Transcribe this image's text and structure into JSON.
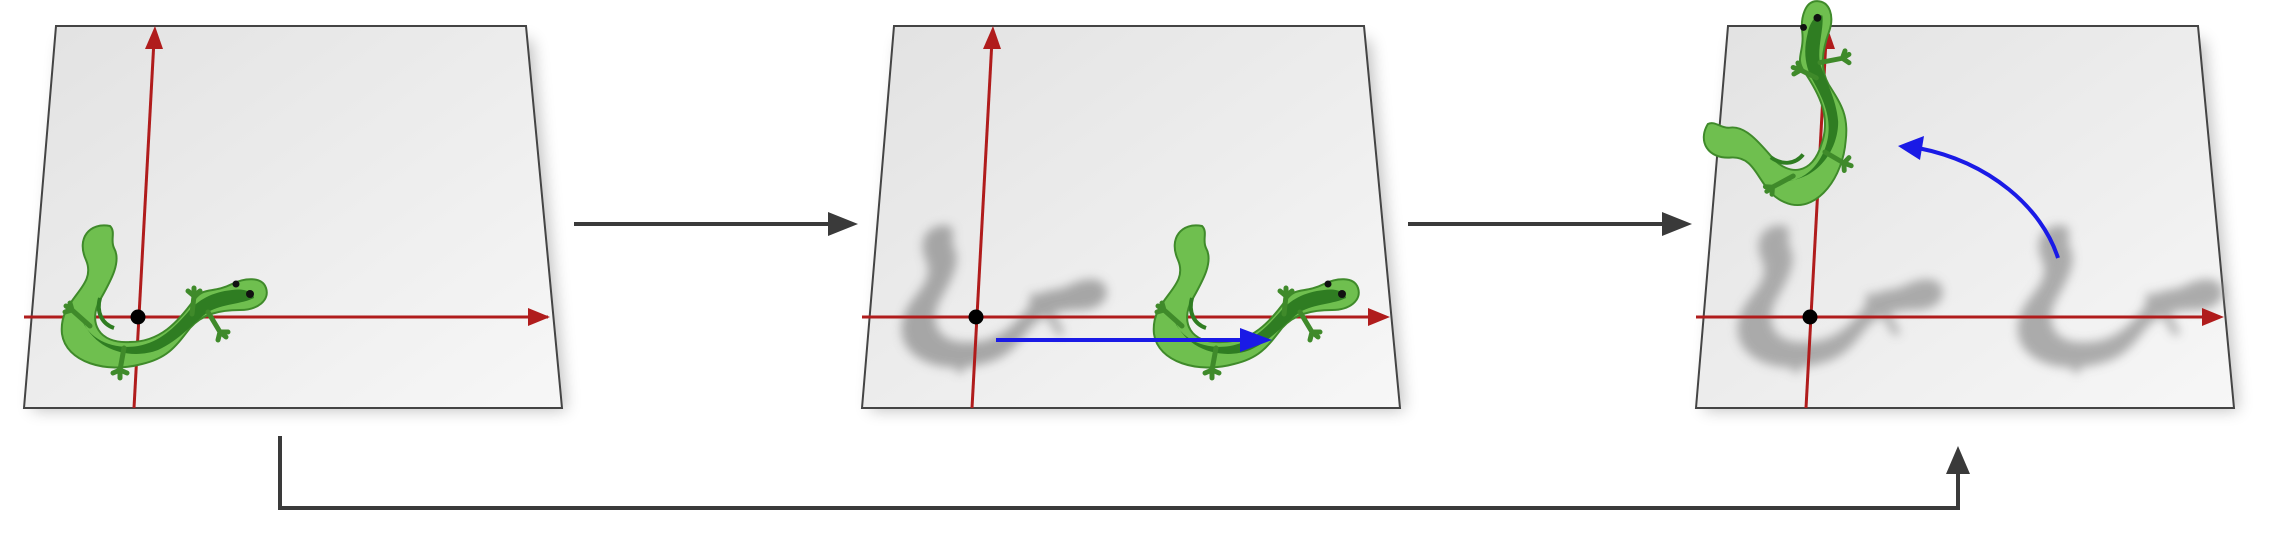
{
  "figure": {
    "panels": [
      {
        "id": "panel-1",
        "state": "initial",
        "lizard": "full",
        "ghosts": 0
      },
      {
        "id": "panel-2",
        "state": "translated",
        "lizard": "full",
        "ghosts": 1
      },
      {
        "id": "panel-3",
        "state": "rotated",
        "lizard": "full",
        "ghosts": 2
      }
    ],
    "colors": {
      "axis": "#b01c1c",
      "translation_arrow": "#1a1ae6",
      "rotation_arrow": "#1a1ae6",
      "flow_arrow": "#3a3a3a",
      "plane_fill": "#efefef",
      "plane_edge": "#444444",
      "lizard_light": "#6fbf4f",
      "lizard_dark": "#2f7d22",
      "ghost": "#9a9a9a"
    }
  }
}
